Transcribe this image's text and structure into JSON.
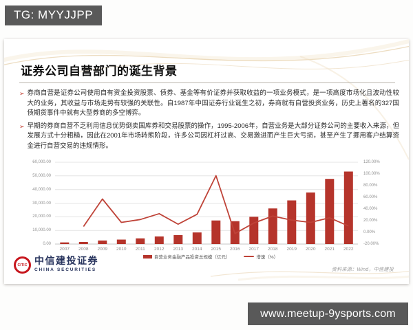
{
  "overlays": {
    "top_banner": "TG: MYYJJPP",
    "bottom_banner": "www.meetup-9ysports.com"
  },
  "slide": {
    "title": "证券公司自营部门的诞生背景",
    "bullet_marker": "➢",
    "bullets": [
      "券商自营是证券公司使用自有资金投资股票、债券、基金等有价证券并获取收益的一项业务模式，是一项高度市场化且波动性较大的业务，其收益与市场走势有较强的关联性。自1987年中国证券行业诞生之初，券商就有自营投资业务，历史上著名的327国债期货事件中就有大型券商的多空博弈。",
      "早期的券商自营不乏利用信息优势倒卖国库券和交易股票的操作，1995-2006年，自营业务是大部分证券公司的主要收入来源，但发展方式十分粗糙，因此在2001年市场转熊阶段，许多公司因杠杆过高、交易激进而产生巨大亏损，甚至产生了挪用客户结算资金进行自营交易的违规情形。"
    ],
    "footer": {
      "source_note": "资料来源：Wind，中信建投",
      "logo_mark": "CITIC",
      "logo_cn": "中信建投证券",
      "logo_en": "CHINA SECURITIES"
    }
  },
  "chart_data": {
    "type": "bar",
    "subtype": "bar+line dual axis combo",
    "categories": [
      "2007",
      "2008",
      "2009",
      "2010",
      "2011",
      "2012",
      "2013",
      "2014",
      "2015",
      "2016",
      "2017",
      "2018",
      "2019",
      "2020",
      "2021",
      "2022"
    ],
    "series": [
      {
        "name": "自营业务金融产品投资总规模（亿元）",
        "type": "bar",
        "axis": "left",
        "color": "#b5342b",
        "values": [
          1200,
          1500,
          2600,
          3300,
          4200,
          5600,
          6600,
          8500,
          17300,
          16800,
          20000,
          26100,
          32000,
          37800,
          47800,
          53200
        ]
      },
      {
        "name": "增速（%）",
        "type": "line",
        "axis": "right",
        "color": "#bf4338",
        "values": [
          null,
          10,
          57,
          17,
          22,
          32,
          14,
          31,
          97,
          -2,
          16,
          28,
          21,
          17,
          25,
          11
        ]
      }
    ],
    "left_axis": {
      "min": 0,
      "max": 60000,
      "tick_labels": [
        "60,000.00",
        "50,000.00",
        "40,000.00",
        "30,000.00",
        "20,000.00",
        "10,000.00",
        "0.00"
      ]
    },
    "right_axis": {
      "min": -20,
      "max": 120,
      "tick_labels": [
        "120.00%",
        "100.00%",
        "80.00%",
        "60.00%",
        "40.00%",
        "20.00%",
        "0.00%",
        "-20.00%"
      ]
    },
    "title": "",
    "xlabel": "",
    "ylabel": "",
    "grid": true,
    "legend_position": "bottom"
  }
}
